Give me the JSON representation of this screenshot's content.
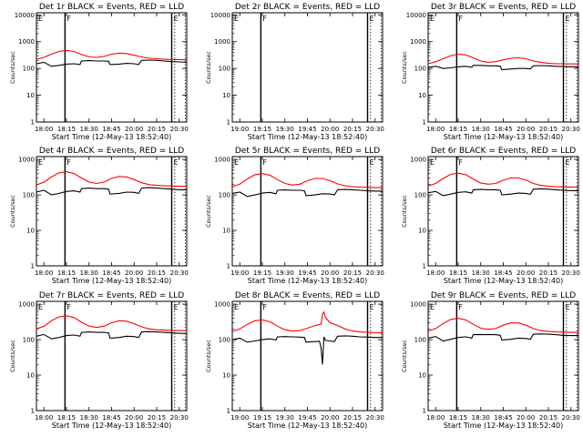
{
  "colors": {
    "events": "#000000",
    "lld": "#ff0000",
    "background": "#ffffff"
  },
  "chart_data": [
    {
      "type": "line",
      "title": "Det 1r BLACK = Events, RED = LLD",
      "xlabel": "Start Time (12-May-13 18:52:40)",
      "ylabel": "Counts/sec",
      "xticks": [
        "18:00",
        "18:15",
        "18:30",
        "18:45",
        "20:00",
        "20:15",
        "20:30"
      ],
      "yticks": [
        "1",
        "10",
        "100",
        "1000",
        "10000"
      ],
      "ylim": [
        1,
        12000
      ],
      "yscale": "log",
      "markers": [
        "E",
        "F",
        "E"
      ],
      "series": [
        {
          "color": "#ff0000",
          "x": [
            0,
            0.05,
            0.1,
            0.15,
            0.2,
            0.25,
            0.3,
            0.35,
            0.4,
            0.45,
            0.5,
            0.55,
            0.6,
            0.65,
            0.7,
            0.75,
            0.8,
            0.85,
            0.9,
            0.95,
            1
          ],
          "y": [
            220,
            260,
            340,
            430,
            470,
            430,
            330,
            270,
            260,
            280,
            340,
            370,
            360,
            310,
            270,
            240,
            230,
            220,
            215,
            215,
            210
          ]
        },
        {
          "color": "#000000",
          "x": [
            0,
            0.05,
            0.1,
            0.15,
            0.2,
            0.25,
            0.29,
            0.3,
            0.35,
            0.4,
            0.45,
            0.48,
            0.49,
            0.55,
            0.6,
            0.65,
            0.68,
            0.7,
            0.75,
            0.8,
            0.85,
            0.9,
            0.95,
            1
          ],
          "y": [
            150,
            170,
            120,
            130,
            145,
            150,
            140,
            190,
            195,
            190,
            190,
            185,
            140,
            145,
            155,
            150,
            140,
            200,
            205,
            200,
            190,
            180,
            175,
            170
          ]
        }
      ]
    },
    {
      "type": "line",
      "title": "Det 2r BLACK = Events, RED = LLD",
      "xlabel": "Start Time (12-May-13 18:52:40)",
      "ylabel": "Counts/sec",
      "xticks": [
        "19:00",
        "19:15",
        "19:30",
        "19:45",
        "20:00",
        "20:15",
        "20:30"
      ],
      "yticks": [
        "1",
        "10",
        "100",
        "1000",
        "10000"
      ],
      "ylim": [
        1,
        12000
      ],
      "yscale": "log",
      "markers": [
        "E",
        "F",
        "E"
      ],
      "series": []
    },
    {
      "type": "line",
      "title": "Det 3r BLACK = Events, RED = LLD",
      "xlabel": "Start Time (12-May-13 18:52:40)",
      "ylabel": "Counts/sec",
      "xticks": [
        "18:00",
        "18:15",
        "18:30",
        "18:45",
        "20:00",
        "20:15",
        "20:30"
      ],
      "yticks": [
        "1",
        "10",
        "100",
        "1000",
        "10000"
      ],
      "ylim": [
        1,
        12000
      ],
      "yscale": "log",
      "markers": [
        "E",
        "F",
        "E"
      ],
      "series": [
        {
          "color": "#ff0000",
          "x": [
            0,
            0.05,
            0.1,
            0.15,
            0.2,
            0.25,
            0.3,
            0.35,
            0.4,
            0.45,
            0.5,
            0.55,
            0.6,
            0.65,
            0.7,
            0.75,
            0.8,
            0.85,
            0.9,
            0.95,
            1
          ],
          "y": [
            150,
            180,
            230,
            300,
            340,
            320,
            250,
            190,
            170,
            180,
            210,
            240,
            250,
            230,
            190,
            170,
            155,
            150,
            150,
            148,
            148
          ]
        },
        {
          "color": "#000000",
          "x": [
            0,
            0.05,
            0.1,
            0.15,
            0.2,
            0.25,
            0.29,
            0.3,
            0.35,
            0.4,
            0.45,
            0.48,
            0.49,
            0.55,
            0.6,
            0.65,
            0.68,
            0.7,
            0.75,
            0.8,
            0.85,
            0.9,
            0.95,
            1
          ],
          "y": [
            110,
            120,
            100,
            105,
            115,
            120,
            110,
            130,
            130,
            125,
            125,
            120,
            90,
            95,
            100,
            100,
            95,
            125,
            128,
            125,
            120,
            118,
            115,
            115
          ]
        }
      ]
    },
    {
      "type": "line",
      "title": "Det 4r BLACK = Events, RED = LLD",
      "xlabel": "Start Time (12-May-13 18:52:40)",
      "ylabel": "Counts/sec",
      "xticks": [
        "18:00",
        "18:15",
        "18:30",
        "18:45",
        "20:00",
        "20:15",
        "20:30"
      ],
      "yticks": [
        "1",
        "10",
        "100",
        "1000"
      ],
      "ylim": [
        1,
        1200
      ],
      "yscale": "log",
      "markers": [
        "E",
        "F",
        "E"
      ],
      "series": [
        {
          "color": "#ff0000",
          "x": [
            0,
            0.05,
            0.1,
            0.15,
            0.2,
            0.25,
            0.3,
            0.35,
            0.4,
            0.45,
            0.5,
            0.55,
            0.6,
            0.65,
            0.7,
            0.75,
            0.8,
            0.85,
            0.9,
            0.95,
            1
          ],
          "y": [
            190,
            230,
            320,
            420,
            450,
            400,
            300,
            230,
            210,
            230,
            290,
            330,
            320,
            270,
            220,
            195,
            185,
            180,
            178,
            175,
            175
          ]
        },
        {
          "color": "#000000",
          "x": [
            0,
            0.05,
            0.1,
            0.15,
            0.2,
            0.25,
            0.29,
            0.3,
            0.35,
            0.4,
            0.45,
            0.48,
            0.49,
            0.55,
            0.6,
            0.65,
            0.68,
            0.7,
            0.75,
            0.8,
            0.85,
            0.9,
            0.95,
            1
          ],
          "y": [
            120,
            135,
            100,
            110,
            125,
            130,
            120,
            150,
            155,
            150,
            150,
            145,
            105,
            110,
            120,
            118,
            110,
            155,
            160,
            155,
            150,
            145,
            140,
            140
          ]
        }
      ]
    },
    {
      "type": "line",
      "title": "Det 5r BLACK = Events, RED = LLD",
      "xlabel": "Start Time (12-May-13 18:52:40)",
      "ylabel": "Counts/sec",
      "xticks": [
        "19:00",
        "19:15",
        "19:30",
        "19:45",
        "20:00",
        "20:15",
        "20:30"
      ],
      "yticks": [
        "1",
        "10",
        "100",
        "1000"
      ],
      "ylim": [
        1,
        1200
      ],
      "yscale": "log",
      "markers": [
        "E",
        "F",
        "E"
      ],
      "series": [
        {
          "color": "#ff0000",
          "x": [
            0,
            0.05,
            0.1,
            0.15,
            0.2,
            0.25,
            0.3,
            0.35,
            0.4,
            0.45,
            0.5,
            0.55,
            0.6,
            0.65,
            0.7,
            0.75,
            0.8,
            0.85,
            0.9,
            0.95,
            1
          ],
          "y": [
            170,
            200,
            280,
            370,
            400,
            360,
            270,
            210,
            190,
            200,
            250,
            290,
            290,
            250,
            205,
            180,
            170,
            165,
            163,
            160,
            160
          ]
        },
        {
          "color": "#000000",
          "x": [
            0,
            0.05,
            0.1,
            0.15,
            0.2,
            0.25,
            0.29,
            0.3,
            0.35,
            0.4,
            0.45,
            0.48,
            0.49,
            0.55,
            0.6,
            0.65,
            0.68,
            0.7,
            0.75,
            0.8,
            0.85,
            0.9,
            0.95,
            1
          ],
          "y": [
            110,
            120,
            90,
            100,
            112,
            118,
            108,
            135,
            138,
            135,
            135,
            130,
            95,
            100,
            108,
            106,
            100,
            140,
            142,
            140,
            135,
            130,
            128,
            128
          ]
        }
      ]
    },
    {
      "type": "line",
      "title": "Det 6r BLACK = Events, RED = LLD",
      "xlabel": "Start Time (12-May-13 18:52:40)",
      "ylabel": "Counts/sec",
      "xticks": [
        "18:00",
        "18:15",
        "18:30",
        "18:45",
        "20:00",
        "20:15",
        "20:30"
      ],
      "yticks": [
        "1",
        "10",
        "100",
        "1000"
      ],
      "ylim": [
        1,
        1200
      ],
      "yscale": "log",
      "markers": [
        "E",
        "F",
        "E"
      ],
      "series": [
        {
          "color": "#ff0000",
          "x": [
            0,
            0.05,
            0.1,
            0.15,
            0.2,
            0.25,
            0.3,
            0.35,
            0.4,
            0.45,
            0.5,
            0.55,
            0.6,
            0.65,
            0.7,
            0.75,
            0.8,
            0.85,
            0.9,
            0.95,
            1
          ],
          "y": [
            180,
            210,
            290,
            380,
            410,
            370,
            280,
            215,
            200,
            210,
            260,
            300,
            300,
            260,
            210,
            185,
            175,
            170,
            168,
            165,
            165
          ]
        },
        {
          "color": "#000000",
          "x": [
            0,
            0.05,
            0.1,
            0.15,
            0.2,
            0.25,
            0.29,
            0.3,
            0.35,
            0.4,
            0.45,
            0.48,
            0.49,
            0.55,
            0.6,
            0.65,
            0.68,
            0.7,
            0.75,
            0.8,
            0.85,
            0.9,
            0.95,
            1
          ],
          "y": [
            115,
            125,
            95,
            105,
            118,
            122,
            112,
            140,
            142,
            140,
            140,
            135,
            100,
            105,
            112,
            110,
            104,
            145,
            148,
            145,
            140,
            135,
            132,
            132
          ]
        }
      ]
    },
    {
      "type": "line",
      "title": "Det 7r BLACK = Events, RED = LLD",
      "xlabel": "Start Time (12-May-13 18:52:40)",
      "ylabel": "Counts/sec",
      "xticks": [
        "18:00",
        "18:15",
        "18:30",
        "18:45",
        "20:00",
        "20:15",
        "20:30"
      ],
      "yticks": [
        "1",
        "10",
        "100",
        "1000"
      ],
      "ylim": [
        1,
        1200
      ],
      "yscale": "log",
      "markers": [
        "E",
        "F",
        "E"
      ],
      "series": [
        {
          "color": "#ff0000",
          "x": [
            0,
            0.05,
            0.1,
            0.15,
            0.2,
            0.25,
            0.3,
            0.35,
            0.4,
            0.45,
            0.5,
            0.55,
            0.6,
            0.65,
            0.7,
            0.75,
            0.8,
            0.85,
            0.9,
            0.95,
            1
          ],
          "y": [
            200,
            240,
            340,
            440,
            470,
            420,
            310,
            240,
            220,
            240,
            300,
            340,
            330,
            280,
            230,
            200,
            190,
            185,
            182,
            180,
            180
          ]
        },
        {
          "color": "#000000",
          "x": [
            0,
            0.05,
            0.1,
            0.15,
            0.2,
            0.25,
            0.29,
            0.3,
            0.35,
            0.4,
            0.45,
            0.48,
            0.49,
            0.55,
            0.6,
            0.65,
            0.68,
            0.7,
            0.75,
            0.8,
            0.85,
            0.9,
            0.95,
            1
          ],
          "y": [
            125,
            140,
            105,
            115,
            130,
            135,
            125,
            160,
            165,
            160,
            160,
            155,
            110,
            115,
            125,
            122,
            115,
            165,
            168,
            165,
            160,
            155,
            150,
            150
          ]
        }
      ]
    },
    {
      "type": "line",
      "title": "Det 8r BLACK = Events, RED = LLD",
      "xlabel": "Start Time (12-May-13 18:52:40)",
      "ylabel": "Counts/sec",
      "xticks": [
        "19:00",
        "19:15",
        "19:30",
        "19:45",
        "20:00",
        "20:15",
        "20:30"
      ],
      "yticks": [
        "1",
        "10",
        "100",
        "1000"
      ],
      "ylim": [
        1,
        1200
      ],
      "yscale": "log",
      "markers": [
        "E",
        "F",
        "E"
      ],
      "series": [
        {
          "color": "#ff0000",
          "x": [
            0,
            0.05,
            0.1,
            0.15,
            0.2,
            0.25,
            0.3,
            0.35,
            0.4,
            0.45,
            0.5,
            0.55,
            0.59,
            0.6,
            0.61,
            0.62,
            0.65,
            0.7,
            0.75,
            0.8,
            0.85,
            0.9,
            0.95,
            1
          ],
          "y": [
            170,
            200,
            270,
            340,
            360,
            320,
            240,
            190,
            175,
            180,
            210,
            250,
            270,
            520,
            600,
            420,
            300,
            250,
            200,
            175,
            165,
            160,
            158,
            155
          ]
        },
        {
          "color": "#000000",
          "x": [
            0,
            0.05,
            0.1,
            0.15,
            0.2,
            0.25,
            0.29,
            0.3,
            0.35,
            0.4,
            0.45,
            0.48,
            0.49,
            0.55,
            0.58,
            0.59,
            0.6,
            0.61,
            0.62,
            0.65,
            0.68,
            0.7,
            0.75,
            0.8,
            0.85,
            0.9,
            0.95,
            1
          ],
          "y": [
            100,
            110,
            85,
            92,
            100,
            105,
            98,
            120,
            122,
            120,
            118,
            115,
            85,
            88,
            90,
            60,
            20,
            120,
            95,
            92,
            88,
            125,
            128,
            125,
            120,
            118,
            115,
            115
          ]
        }
      ]
    },
    {
      "type": "line",
      "title": "Det 9r BLACK = Events, RED = LLD",
      "xlabel": "Start Time (12-May-13 18:52:40)",
      "ylabel": "Counts/sec",
      "xticks": [
        "18:00",
        "18:15",
        "18:30",
        "18:45",
        "20:00",
        "20:15",
        "20:30"
      ],
      "yticks": [
        "1",
        "10",
        "100",
        "1000"
      ],
      "ylim": [
        1,
        1200
      ],
      "yscale": "log",
      "markers": [
        "E",
        "F",
        "E"
      ],
      "series": [
        {
          "color": "#ff0000",
          "x": [
            0,
            0.05,
            0.1,
            0.15,
            0.2,
            0.25,
            0.3,
            0.35,
            0.4,
            0.45,
            0.5,
            0.55,
            0.6,
            0.65,
            0.7,
            0.75,
            0.8,
            0.85,
            0.9,
            0.95,
            1
          ],
          "y": [
            175,
            205,
            285,
            370,
            400,
            360,
            270,
            210,
            195,
            205,
            255,
            295,
            295,
            255,
            205,
            180,
            170,
            165,
            163,
            160,
            160
          ]
        },
        {
          "color": "#000000",
          "x": [
            0,
            0.05,
            0.1,
            0.15,
            0.2,
            0.25,
            0.29,
            0.3,
            0.35,
            0.4,
            0.45,
            0.48,
            0.49,
            0.55,
            0.6,
            0.65,
            0.68,
            0.7,
            0.75,
            0.8,
            0.85,
            0.9,
            0.95,
            1
          ],
          "y": [
            110,
            122,
            92,
            102,
            115,
            120,
            110,
            138,
            140,
            138,
            138,
            132,
            98,
            102,
            110,
            108,
            102,
            142,
            145,
            142,
            138,
            132,
            130,
            130
          ]
        }
      ]
    }
  ]
}
